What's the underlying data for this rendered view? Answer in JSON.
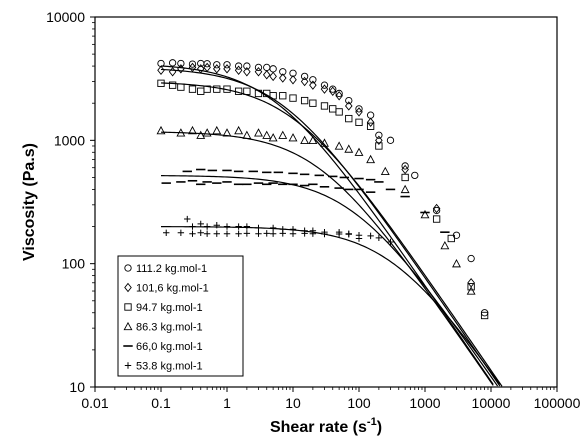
{
  "chart_data": {
    "type": "scatter",
    "xlabel": "Shear rate (s",
    "xlabel_sup": "-1",
    "xlabel_tail": ")",
    "ylabel": "Viscosity (Pa.s)",
    "x_scale": "log",
    "y_scale": "log",
    "xlim": [
      0.01,
      100000
    ],
    "ylim": [
      10,
      10000
    ],
    "x_ticks": [
      "0.01",
      "0.1",
      "1",
      "10",
      "100",
      "1000",
      "10000",
      "100000"
    ],
    "y_ticks": [
      "10",
      "100",
      "1000",
      "10000"
    ],
    "grid": false,
    "legend_position": "bottom-left",
    "series": [
      {
        "name": "111.2 kg.mol-1",
        "marker": "circle",
        "eta0": 4200,
        "lambda": 0.2,
        "n": 0.22,
        "points": [
          [
            0.1,
            4200
          ],
          [
            0.15,
            4250
          ],
          [
            0.2,
            4200
          ],
          [
            0.3,
            4150
          ],
          [
            0.4,
            4200
          ],
          [
            0.5,
            4180
          ],
          [
            0.7,
            4100
          ],
          [
            1,
            4100
          ],
          [
            1.5,
            4000
          ],
          [
            2,
            4000
          ],
          [
            3,
            3900
          ],
          [
            4,
            3900
          ],
          [
            5,
            3800
          ],
          [
            7,
            3600
          ],
          [
            10,
            3500
          ],
          [
            15,
            3300
          ],
          [
            20,
            3100
          ],
          [
            30,
            2800
          ],
          [
            40,
            2600
          ],
          [
            50,
            2400
          ],
          [
            70,
            2100
          ],
          [
            100,
            1800
          ],
          [
            150,
            1600
          ],
          [
            200,
            1100
          ],
          [
            300,
            1000
          ],
          [
            500,
            620
          ],
          [
            700,
            520
          ],
          [
            1500,
            270
          ],
          [
            3000,
            170
          ],
          [
            5000,
            110
          ],
          [
            8000,
            40
          ]
        ]
      },
      {
        "name": "101,6 kg.mol-1",
        "marker": "diamond",
        "eta0": 3900,
        "lambda": 0.15,
        "n": 0.22,
        "points": [
          [
            0.1,
            3700
          ],
          [
            0.15,
            3600
          ],
          [
            0.2,
            3800
          ],
          [
            0.3,
            3900
          ],
          [
            0.4,
            3800
          ],
          [
            0.5,
            3900
          ],
          [
            0.7,
            3800
          ],
          [
            1,
            3800
          ],
          [
            1.5,
            3700
          ],
          [
            2,
            3600
          ],
          [
            3,
            3600
          ],
          [
            4,
            3400
          ],
          [
            5,
            3300
          ],
          [
            7,
            3200
          ],
          [
            10,
            3100
          ],
          [
            15,
            3000
          ],
          [
            20,
            2800
          ],
          [
            30,
            2600
          ],
          [
            40,
            2500
          ],
          [
            50,
            2300
          ],
          [
            70,
            1900
          ],
          [
            100,
            1700
          ],
          [
            150,
            1400
          ],
          [
            200,
            1000
          ],
          [
            500,
            580
          ],
          [
            1500,
            280
          ],
          [
            5000,
            70
          ]
        ]
      },
      {
        "name": "94.7 kg.mol-1",
        "marker": "square",
        "eta0": 3000,
        "lambda": 0.1,
        "n": 0.22,
        "points": [
          [
            0.1,
            2900
          ],
          [
            0.15,
            2800
          ],
          [
            0.2,
            2700
          ],
          [
            0.3,
            2600
          ],
          [
            0.4,
            2500
          ],
          [
            0.5,
            2600
          ],
          [
            0.7,
            2600
          ],
          [
            1,
            2600
          ],
          [
            1.5,
            2500
          ],
          [
            2,
            2500
          ],
          [
            3,
            2400
          ],
          [
            4,
            2400
          ],
          [
            5,
            2300
          ],
          [
            7,
            2300
          ],
          [
            10,
            2200
          ],
          [
            15,
            2100
          ],
          [
            20,
            2000
          ],
          [
            30,
            1900
          ],
          [
            40,
            1800
          ],
          [
            50,
            1700
          ],
          [
            70,
            1500
          ],
          [
            100,
            1400
          ],
          [
            150,
            1300
          ],
          [
            200,
            900
          ],
          [
            500,
            500
          ],
          [
            1500,
            230
          ],
          [
            2500,
            160
          ],
          [
            5000,
            65
          ],
          [
            8000,
            38
          ]
        ]
      },
      {
        "name": "86.3 kg.mol-1",
        "marker": "triangle",
        "eta0": 1180,
        "lambda": 0.04,
        "n": 0.22,
        "points": [
          [
            0.1,
            1200
          ],
          [
            0.2,
            1150
          ],
          [
            0.3,
            1200
          ],
          [
            0.4,
            1100
          ],
          [
            0.5,
            1150
          ],
          [
            0.7,
            1200
          ],
          [
            1,
            1150
          ],
          [
            1.5,
            1200
          ],
          [
            2,
            1100
          ],
          [
            3,
            1150
          ],
          [
            4,
            1100
          ],
          [
            5,
            1050
          ],
          [
            7,
            1100
          ],
          [
            10,
            1050
          ],
          [
            15,
            1000
          ],
          [
            20,
            1000
          ],
          [
            30,
            950
          ],
          [
            50,
            900
          ],
          [
            70,
            850
          ],
          [
            100,
            800
          ],
          [
            150,
            700
          ],
          [
            250,
            560
          ],
          [
            500,
            400
          ],
          [
            1000,
            250
          ],
          [
            2000,
            140
          ],
          [
            3000,
            100
          ],
          [
            5000,
            60
          ]
        ]
      },
      {
        "name": "66,0 kg.mol-1",
        "marker": "dash",
        "eta0": 520,
        "lambda": 0.012,
        "n": 0.22,
        "points": [
          [
            0.12,
            450
          ],
          [
            0.2,
            460
          ],
          [
            0.3,
            470
          ],
          [
            0.4,
            440
          ],
          [
            0.5,
            460
          ],
          [
            0.7,
            450
          ],
          [
            1,
            460
          ],
          [
            1.5,
            440
          ],
          [
            2,
            440
          ],
          [
            3,
            450
          ],
          [
            4,
            440
          ],
          [
            5,
            450
          ],
          [
            7,
            440
          ],
          [
            10,
            440
          ],
          [
            15,
            430
          ],
          [
            20,
            440
          ],
          [
            30,
            420
          ],
          [
            50,
            410
          ],
          [
            70,
            400
          ],
          [
            100,
            400
          ],
          [
            150,
            380
          ],
          [
            0.25,
            560
          ],
          [
            0.4,
            580
          ],
          [
            0.6,
            570
          ],
          [
            1,
            570
          ],
          [
            1.5,
            560
          ],
          [
            2.5,
            560
          ],
          [
            4,
            550
          ],
          [
            6,
            550
          ],
          [
            10,
            540
          ],
          [
            15,
            530
          ],
          [
            25,
            520
          ],
          [
            40,
            510
          ],
          [
            60,
            500
          ],
          [
            100,
            490
          ],
          [
            150,
            480
          ],
          [
            200,
            460
          ],
          [
            300,
            400
          ],
          [
            500,
            350
          ],
          [
            1000,
            260
          ],
          [
            2000,
            180
          ]
        ]
      },
      {
        "name": "53.8 kg.mol-1",
        "marker": "plus",
        "eta0": 200,
        "lambda": 0.003,
        "n": 0.22,
        "points": [
          [
            0.12,
            178
          ],
          [
            0.2,
            178
          ],
          [
            0.3,
            175
          ],
          [
            0.4,
            178
          ],
          [
            0.5,
            175
          ],
          [
            0.7,
            175
          ],
          [
            1,
            175
          ],
          [
            1.5,
            175
          ],
          [
            2,
            176
          ],
          [
            3,
            175
          ],
          [
            4,
            176
          ],
          [
            5,
            175
          ],
          [
            7,
            176
          ],
          [
            10,
            175
          ],
          [
            15,
            176
          ],
          [
            20,
            175
          ],
          [
            30,
            174
          ],
          [
            50,
            174
          ],
          [
            70,
            173
          ],
          [
            100,
            170
          ],
          [
            150,
            168
          ],
          [
            0.25,
            230
          ],
          [
            0.3,
            200
          ],
          [
            0.4,
            210
          ],
          [
            0.5,
            200
          ],
          [
            0.7,
            205
          ],
          [
            1,
            200
          ],
          [
            1.5,
            200
          ],
          [
            2,
            200
          ],
          [
            3,
            195
          ],
          [
            5,
            195
          ],
          [
            7,
            190
          ],
          [
            10,
            190
          ],
          [
            15,
            185
          ],
          [
            20,
            185
          ],
          [
            30,
            180
          ],
          [
            50,
            180
          ],
          [
            70,
            175
          ],
          [
            100,
            160
          ],
          [
            200,
            162
          ],
          [
            300,
            150
          ]
        ]
      }
    ]
  }
}
